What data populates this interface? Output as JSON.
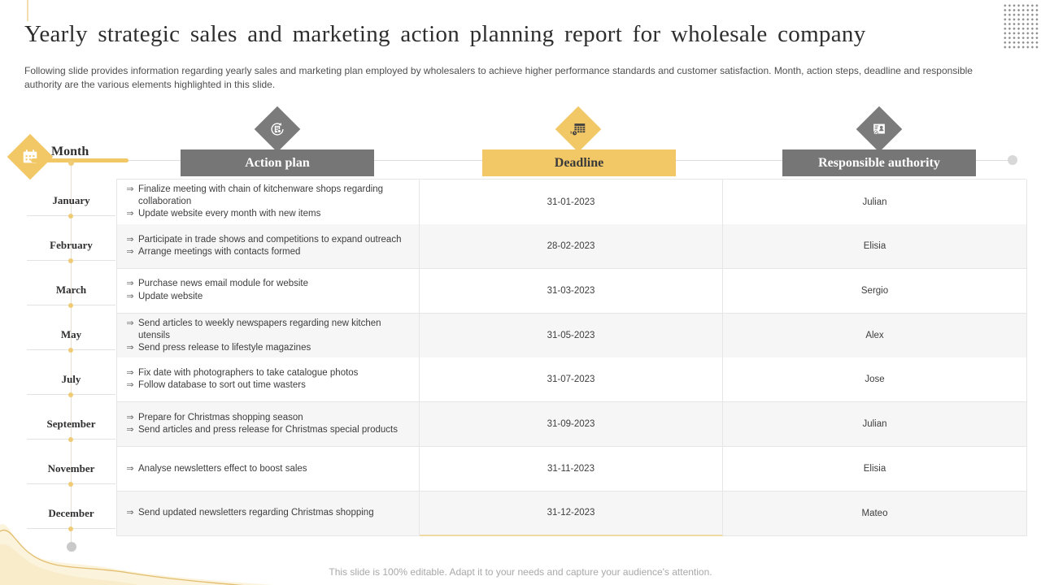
{
  "slide": {
    "title": "Yearly strategic sales and marketing action planning report for wholesale company",
    "subtitle": "Following slide provides information regarding yearly sales and marketing plan employed by wholesalers to achieve higher performance standards and customer satisfaction. Month, action steps, deadline and responsible authority are the various elements highlighted in this slide.",
    "footer": "This slide is 100% editable. Adapt it to your needs and capture your audience's attention."
  },
  "columns": {
    "month_label": "Month",
    "action_plan_label": "Action plan",
    "deadline_label": "Deadline",
    "responsible_label": "Responsible authority"
  },
  "bullet": "⇒",
  "icons": {
    "month": "calendar-icon",
    "action_plan": "refresh-document-icon",
    "deadline": "calendar-clock-icon",
    "responsible": "id-card-icon",
    "bullet": "double-arrow-icon"
  },
  "colors": {
    "accent_yellow": "#F2C766",
    "header_gray": "#767676",
    "text_dark": "#3D3D3D",
    "muted_text": "#A8A8A8"
  },
  "rows": [
    {
      "month": "January",
      "actions": [
        "Finalize meeting with chain of kitchenware shops regarding collaboration",
        "Update website every month with new items"
      ],
      "deadline": "31-01-2023",
      "authority": "Julian"
    },
    {
      "month": "February",
      "actions": [
        "Participate in trade shows and competitions to expand outreach",
        "Arrange meetings with contacts formed"
      ],
      "deadline": "28-02-2023",
      "authority": "Elisia"
    },
    {
      "month": "March",
      "actions": [
        "Purchase news email module for website",
        "Update website"
      ],
      "deadline": "31-03-2023",
      "authority": "Sergio"
    },
    {
      "month": "May",
      "actions": [
        "Send articles to weekly newspapers regarding new kitchen utensils",
        "Send press release to lifestyle magazines"
      ],
      "deadline": "31-05-2023",
      "authority": "Alex"
    },
    {
      "month": "July",
      "actions": [
        "Fix date with photographers to take catalogue photos",
        "Follow database to sort out time wasters"
      ],
      "deadline": "31-07-2023",
      "authority": "Jose"
    },
    {
      "month": "September",
      "actions": [
        "Prepare for Christmas shopping season",
        "Send articles and press release for Christmas special products"
      ],
      "deadline": "31-09-2023",
      "authority": "Julian"
    },
    {
      "month": "November",
      "actions": [
        "Analyse newsletters effect to boost sales"
      ],
      "deadline": "31-11-2023",
      "authority": "Elisia"
    },
    {
      "month": "December",
      "actions": [
        "Send updated newsletters regarding Christmas shopping"
      ],
      "deadline": "31-12-2023",
      "authority": "Mateo"
    }
  ]
}
